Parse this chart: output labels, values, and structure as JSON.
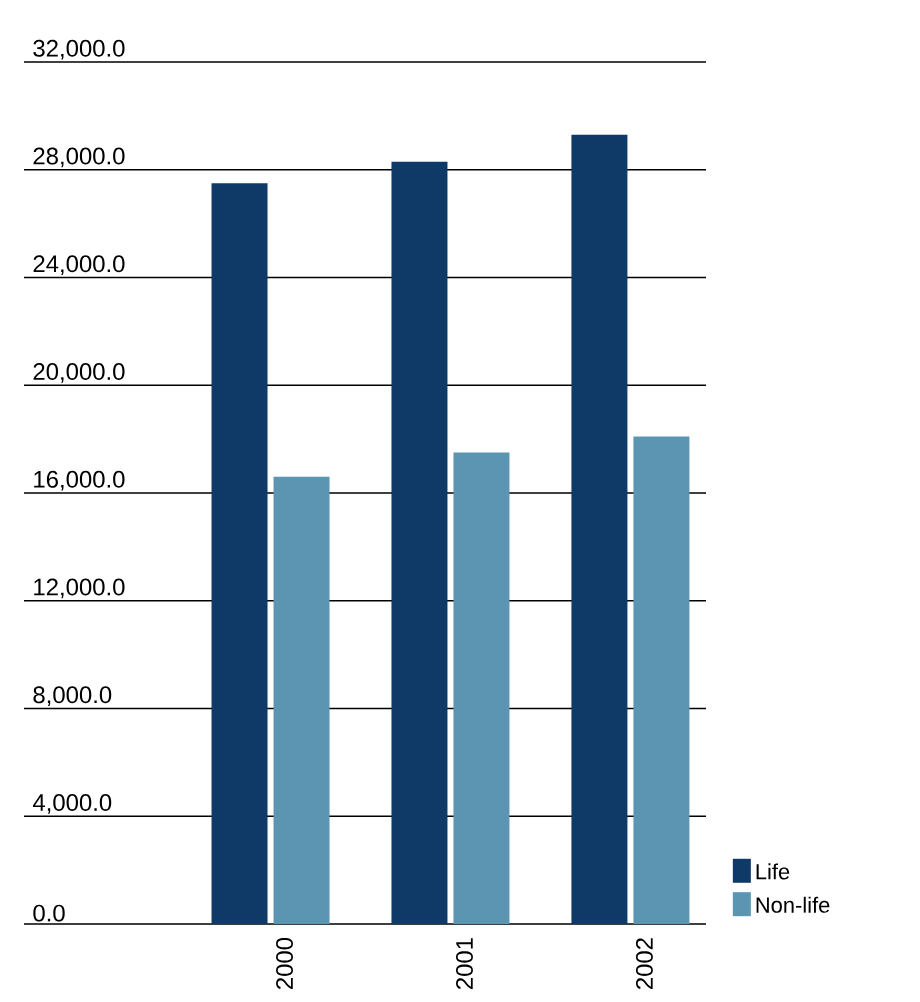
{
  "chart_data": {
    "type": "bar",
    "categories": [
      "2000",
      "2001",
      "2002"
    ],
    "series": [
      {
        "name": "Life",
        "color": "#0f3a67",
        "values": [
          27500,
          28300,
          29300
        ]
      },
      {
        "name": "Non-life",
        "color": "#5b95b2",
        "values": [
          16600,
          17500,
          18100
        ]
      }
    ],
    "ylim": [
      0,
      32000
    ],
    "yticks": [
      {
        "value": 0,
        "label": "0.0"
      },
      {
        "value": 4000,
        "label": "4,000.0"
      },
      {
        "value": 8000,
        "label": "8,000.0"
      },
      {
        "value": 12000,
        "label": "12,000.0"
      },
      {
        "value": 16000,
        "label": "16,000.0"
      },
      {
        "value": 20000,
        "label": "20,000.0"
      },
      {
        "value": 24000,
        "label": "24,000.0"
      },
      {
        "value": 28000,
        "label": "28,000.0"
      },
      {
        "value": 32000,
        "label": "32,000.0"
      }
    ],
    "grid": "y",
    "legend": "bottom right"
  }
}
